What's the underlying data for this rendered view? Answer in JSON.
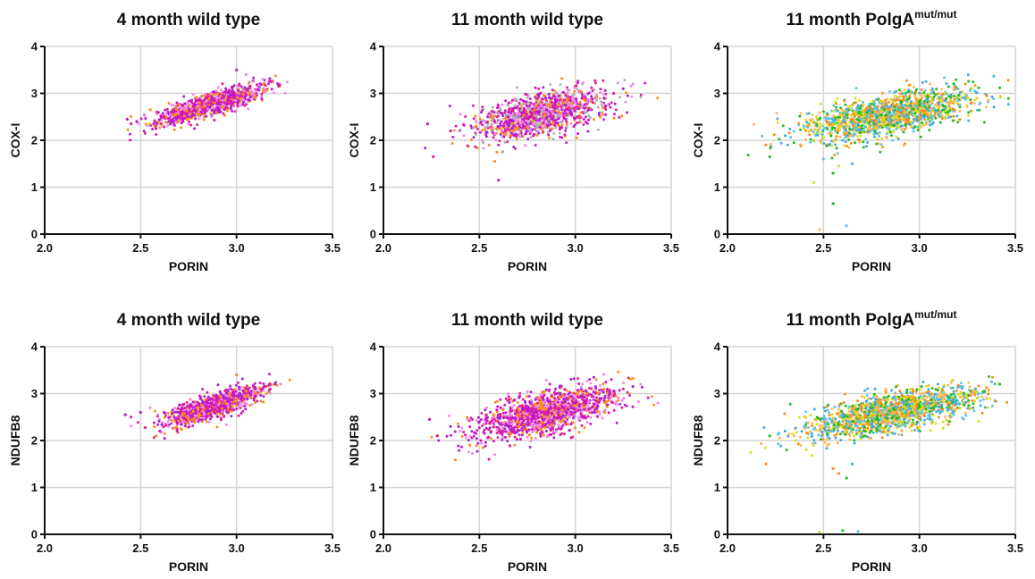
{
  "figure": {
    "panel_order": [
      "top-left",
      "top-middle",
      "top-right",
      "bottom-left",
      "bottom-middle",
      "bottom-right"
    ]
  },
  "chart_data": [
    {
      "type": "scatter",
      "title": "4 month wild type",
      "title_sup": "",
      "xlabel": "PORIN",
      "ylabel": "COX-I",
      "xlim": [
        2.0,
        3.5
      ],
      "ylim": [
        0,
        4
      ],
      "x_ticks": [
        "2.0",
        "2.5",
        "3.0",
        "3.5"
      ],
      "y_ticks": [
        "0",
        "1",
        "2",
        "3",
        "4"
      ],
      "grid": true,
      "legend": "none",
      "point_colors": [
        "#cc11cc",
        "#e0209a",
        "#aa22cc",
        "#ee88ee",
        "#ff8c1a"
      ],
      "point_cloud": {
        "x_center": 2.86,
        "x_spread": 0.14,
        "slope": 1.2,
        "y_at_center": 2.75,
        "y_noise": 0.12,
        "n": 900
      },
      "series": [
        {
          "x": [
            2.43,
            2.45,
            2.48,
            2.52,
            2.55,
            2.58,
            2.62,
            2.66,
            2.7,
            2.74,
            2.78,
            2.82,
            2.86,
            2.9,
            2.94,
            2.98,
            3.02,
            3.06,
            3.1,
            3.14,
            3.18,
            3.22,
            3.0,
            3.05
          ],
          "y": [
            2.45,
            2.35,
            2.4,
            2.55,
            2.65,
            2.25,
            2.5,
            2.6,
            2.7,
            2.65,
            2.75,
            2.8,
            2.7,
            2.9,
            2.85,
            3.0,
            2.95,
            3.1,
            3.05,
            3.2,
            3.25,
            3.15,
            3.5,
            3.4
          ]
        }
      ]
    },
    {
      "type": "scatter",
      "title": "11 month wild type",
      "title_sup": "",
      "xlabel": "PORIN",
      "ylabel": "COX-I",
      "xlim": [
        2.0,
        3.5
      ],
      "ylim": [
        0,
        4
      ],
      "x_ticks": [
        "2.0",
        "2.5",
        "3.0",
        "3.5"
      ],
      "y_ticks": [
        "0",
        "1",
        "2",
        "3",
        "4"
      ],
      "grid": true,
      "legend": "none",
      "point_colors": [
        "#cc11cc",
        "#e0209a",
        "#aa22cc",
        "#ee88ee",
        "#ff8c1a",
        "#b0b0b0"
      ],
      "point_cloud": {
        "x_center": 2.82,
        "x_spread": 0.17,
        "slope": 0.85,
        "y_at_center": 2.55,
        "y_noise": 0.22,
        "n": 1200
      },
      "series": [
        {
          "x": [
            2.23,
            2.26,
            2.35,
            2.42,
            2.48,
            2.52,
            2.58,
            2.6,
            2.65,
            2.7,
            2.75,
            2.8,
            2.85,
            2.9,
            2.95,
            3.0,
            3.05,
            3.1,
            3.15,
            3.2,
            3.25,
            3.3,
            2.58,
            2.62
          ],
          "y": [
            2.35,
            1.65,
            2.2,
            2.1,
            2.3,
            1.95,
            2.4,
            1.15,
            2.5,
            2.55,
            2.6,
            2.5,
            2.65,
            2.7,
            2.75,
            2.8,
            2.85,
            2.9,
            2.9,
            3.0,
            3.1,
            3.2,
            1.55,
            1.75
          ]
        }
      ]
    },
    {
      "type": "scatter",
      "title": "11 month PolgA",
      "title_sup": "mut/mut",
      "xlabel": "PORIN",
      "ylabel": "COX-I",
      "xlim": [
        2.0,
        3.5
      ],
      "ylim": [
        0,
        4
      ],
      "x_ticks": [
        "2.0",
        "2.5",
        "3.0",
        "3.5"
      ],
      "y_ticks": [
        "0",
        "1",
        "2",
        "3",
        "4"
      ],
      "grid": true,
      "legend": "none",
      "point_colors": [
        "#ff8c1a",
        "#22bb22",
        "#44aadd",
        "#5fc4e6",
        "#dddd22",
        "#ffb84d"
      ],
      "point_cloud": {
        "x_center": 2.85,
        "x_spread": 0.22,
        "slope": 0.75,
        "y_at_center": 2.55,
        "y_noise": 0.22,
        "n": 1500
      },
      "series": [
        {
          "x": [
            2.2,
            2.22,
            2.3,
            2.4,
            2.45,
            2.48,
            2.52,
            2.55,
            2.6,
            2.62,
            2.7,
            2.8,
            2.9,
            3.0,
            3.1,
            3.2,
            3.25,
            3.3,
            3.35,
            2.55,
            2.65,
            2.5,
            2.58,
            3.36
          ],
          "y": [
            1.9,
            1.65,
            2.1,
            2.3,
            1.1,
            0.1,
            2.4,
            0.65,
            2.0,
            0.18,
            2.5,
            2.6,
            2.7,
            2.75,
            2.8,
            2.85,
            2.9,
            2.9,
            2.95,
            1.3,
            1.5,
            1.6,
            1.45,
            2.85
          ]
        }
      ]
    },
    {
      "type": "scatter",
      "title": "4 month wild type",
      "title_sup": "",
      "xlabel": "PORIN",
      "ylabel": "NDUFB8",
      "xlim": [
        2.0,
        3.5
      ],
      "ylim": [
        0,
        4
      ],
      "x_ticks": [
        "2.0",
        "2.5",
        "3.0",
        "3.5"
      ],
      "y_ticks": [
        "0",
        "1",
        "2",
        "3",
        "4"
      ],
      "grid": true,
      "legend": "none",
      "point_colors": [
        "#cc11cc",
        "#e0209a",
        "#aa22cc",
        "#ee88ee",
        "#ff8c1a"
      ],
      "point_cloud": {
        "x_center": 2.87,
        "x_spread": 0.13,
        "slope": 1.25,
        "y_at_center": 2.72,
        "y_noise": 0.13,
        "n": 900
      },
      "series": [
        {
          "x": [
            2.42,
            2.45,
            2.5,
            2.55,
            2.58,
            2.6,
            2.65,
            2.7,
            2.75,
            2.8,
            2.85,
            2.9,
            2.95,
            3.0,
            3.05,
            3.1,
            3.15,
            3.2,
            3.23,
            3.0
          ],
          "y": [
            2.55,
            2.5,
            2.6,
            2.7,
            2.1,
            2.2,
            2.5,
            2.6,
            2.65,
            2.7,
            2.8,
            2.85,
            2.9,
            3.0,
            3.05,
            3.1,
            3.15,
            3.2,
            3.2,
            3.4
          ]
        }
      ]
    },
    {
      "type": "scatter",
      "title": "11 month wild type",
      "title_sup": "",
      "xlabel": "PORIN",
      "ylabel": "NDUFB8",
      "xlim": [
        2.0,
        3.5
      ],
      "ylim": [
        0,
        4
      ],
      "x_ticks": [
        "2.0",
        "2.5",
        "3.0",
        "3.5"
      ],
      "y_ticks": [
        "0",
        "1",
        "2",
        "3",
        "4"
      ],
      "grid": true,
      "legend": "none",
      "point_colors": [
        "#cc11cc",
        "#e0209a",
        "#aa22cc",
        "#ee88ee",
        "#ff8c1a"
      ],
      "point_cloud": {
        "x_center": 2.85,
        "x_spread": 0.18,
        "slope": 0.9,
        "y_at_center": 2.6,
        "y_noise": 0.22,
        "n": 1300
      },
      "series": [
        {
          "x": [
            2.24,
            2.28,
            2.35,
            2.4,
            2.45,
            2.5,
            2.55,
            2.6,
            2.65,
            2.7,
            2.8,
            2.9,
            3.0,
            3.1,
            3.15,
            3.2,
            3.25,
            3.3,
            2.58,
            2.52
          ],
          "y": [
            2.45,
            2.1,
            2.3,
            2.2,
            1.9,
            2.4,
            1.6,
            2.5,
            2.4,
            2.55,
            2.6,
            2.7,
            2.8,
            2.9,
            3.1,
            3.05,
            3.1,
            3.15,
            1.7,
            1.85
          ]
        }
      ]
    },
    {
      "type": "scatter",
      "title": "11 month PolgA",
      "title_sup": "mut/mut",
      "xlabel": "PORIN",
      "ylabel": "NDUFB8",
      "xlim": [
        2.0,
        3.5
      ],
      "ylim": [
        0,
        4
      ],
      "x_ticks": [
        "2.0",
        "2.5",
        "3.0",
        "3.5"
      ],
      "y_ticks": [
        "0",
        "1",
        "2",
        "3",
        "4"
      ],
      "grid": true,
      "legend": "none",
      "point_colors": [
        "#ff8c1a",
        "#22bb22",
        "#44aadd",
        "#5fc4e6",
        "#dddd22",
        "#ffb84d"
      ],
      "point_cloud": {
        "x_center": 2.86,
        "x_spread": 0.22,
        "slope": 0.75,
        "y_at_center": 2.6,
        "y_noise": 0.2,
        "n": 1500
      },
      "series": [
        {
          "x": [
            2.2,
            2.22,
            2.3,
            2.4,
            2.48,
            2.52,
            2.55,
            2.6,
            2.65,
            2.68,
            2.7,
            2.8,
            2.9,
            3.0,
            3.1,
            3.2,
            3.3,
            3.35,
            2.58,
            2.62
          ],
          "y": [
            1.5,
            2.1,
            2.2,
            2.3,
            0.05,
            1.9,
            1.4,
            0.08,
            1.5,
            0.06,
            2.5,
            2.6,
            2.7,
            2.75,
            2.8,
            2.85,
            2.9,
            2.9,
            1.3,
            1.2
          ]
        }
      ]
    }
  ]
}
